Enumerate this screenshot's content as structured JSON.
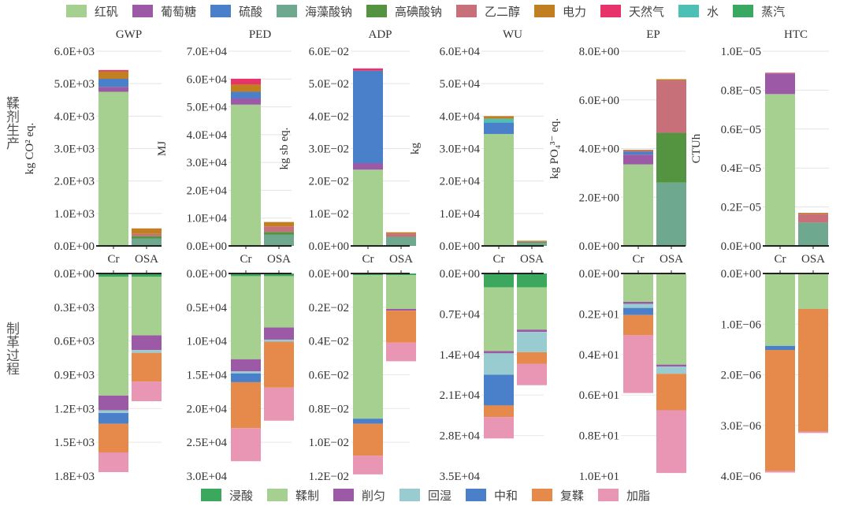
{
  "legend_top": [
    {
      "label": "红矾",
      "color": "#a6d08f"
    },
    {
      "label": "葡萄糖",
      "color": "#9b59a6"
    },
    {
      "label": "硫酸",
      "color": "#4a7fc9"
    },
    {
      "label": "海藻酸钠",
      "color": "#6ea88e"
    },
    {
      "label": "高碘酸钠",
      "color": "#549441"
    },
    {
      "label": "乙二醇",
      "color": "#c8707a"
    },
    {
      "label": "电力",
      "color": "#c17f22"
    },
    {
      "label": "天然气",
      "color": "#e8336a"
    },
    {
      "label": "水",
      "color": "#4cc0b5"
    },
    {
      "label": "蒸汽",
      "color": "#3aa860"
    }
  ],
  "legend_bottom": [
    {
      "label": "浸酸",
      "color": "#3ba85e"
    },
    {
      "label": "鞣制",
      "color": "#a6d08f"
    },
    {
      "label": "削匀",
      "color": "#9b59a6"
    },
    {
      "label": "回湿",
      "color": "#98ccd0"
    },
    {
      "label": "中和",
      "color": "#4a7fc9"
    },
    {
      "label": "复鞣",
      "color": "#e68a4c"
    },
    {
      "label": "加脂",
      "color": "#e896b4"
    }
  ],
  "row_labels": [
    "鞣剂生产",
    "制革过程"
  ],
  "chart_data": {
    "type": "bar",
    "subtype": "stacked",
    "categories": [
      "Cr",
      "OSA"
    ],
    "panels": [
      {
        "title": "GWP",
        "ylabel": "kg CO² eq.",
        "top": {
          "ylim": [
            0,
            6000
          ],
          "ticks": [
            "0.0E+00",
            "1.0E+03",
            "2.0E+03",
            "3.0E+03",
            "4.0E+03",
            "5.0E+03",
            "6.0E+03"
          ],
          "series": [
            {
              "name": "红矾",
              "values": [
                4750,
                0
              ]
            },
            {
              "name": "葡萄糖",
              "values": [
                150,
                0
              ]
            },
            {
              "name": "硫酸",
              "values": [
                250,
                0
              ]
            },
            {
              "name": "海藻酸钠",
              "values": [
                0,
                230
              ]
            },
            {
              "name": "高碘酸钠",
              "values": [
                0,
                70
              ]
            },
            {
              "name": "乙二醇",
              "values": [
                0,
                70
              ]
            },
            {
              "name": "电力",
              "values": [
                230,
                170
              ]
            },
            {
              "name": "天然气",
              "values": [
                40,
                0
              ]
            }
          ]
        },
        "bottom": {
          "ylim": [
            0,
            1800
          ],
          "ticks": [
            "0.0E+00",
            "0.3E+03",
            "0.6E+03",
            "0.9E+03",
            "1.2E+03",
            "1.5E+03",
            "1.8E+03"
          ],
          "series": [
            {
              "name": "浸酸",
              "values": [
                30,
                30
              ]
            },
            {
              "name": "鞣制",
              "values": [
                1055,
                520
              ]
            },
            {
              "name": "削匀",
              "values": [
                130,
                130
              ]
            },
            {
              "name": "回湿",
              "values": [
                25,
                25
              ]
            },
            {
              "name": "中和",
              "values": [
                95,
                0
              ]
            },
            {
              "name": "复鞣",
              "values": [
                255,
                255
              ]
            },
            {
              "name": "加脂",
              "values": [
                175,
                175
              ]
            }
          ]
        }
      },
      {
        "title": "PED",
        "ylabel": "MJ",
        "top": {
          "ylim": [
            0,
            70000
          ],
          "ticks": [
            "0.0E+00",
            "1.0E+04",
            "2.0E+04",
            "3.0E+04",
            "4.0E+04",
            "5.0E+04",
            "6.0E+04",
            "7.0E+04"
          ],
          "series": [
            {
              "name": "红矾",
              "values": [
                50800,
                0
              ]
            },
            {
              "name": "葡萄糖",
              "values": [
                2200,
                0
              ]
            },
            {
              "name": "硫酸",
              "values": [
                2400,
                0
              ]
            },
            {
              "name": "海藻酸钠",
              "values": [
                0,
                4000
              ]
            },
            {
              "name": "高碘酸钠",
              "values": [
                0,
                1000
              ]
            },
            {
              "name": "乙二醇",
              "values": [
                0,
                2000
              ]
            },
            {
              "name": "电力",
              "values": [
                2700,
                1600
              ]
            },
            {
              "name": "天然气",
              "values": [
                2000,
                0
              ]
            }
          ]
        },
        "bottom": {
          "ylim": [
            0,
            30000
          ],
          "ticks": [
            "0.0E+00",
            "0.5E+04",
            "1.0E+04",
            "1.5E+04",
            "2.0E+04",
            "2.5E+04",
            "3.0E+04"
          ],
          "series": [
            {
              "name": "浸酸",
              "values": [
                400,
                400
              ]
            },
            {
              "name": "鞣制",
              "values": [
                12300,
                7600
              ]
            },
            {
              "name": "削匀",
              "values": [
                1800,
                1800
              ]
            },
            {
              "name": "回湿",
              "values": [
                300,
                300
              ]
            },
            {
              "name": "中和",
              "values": [
                1300,
                0
              ]
            },
            {
              "name": "复鞣",
              "values": [
                6800,
                6800
              ]
            },
            {
              "name": "加脂",
              "values": [
                4900,
                4900
              ]
            }
          ]
        }
      },
      {
        "title": "ADP",
        "ylabel": "kg sb eq.",
        "top": {
          "ylim": [
            0,
            0.06
          ],
          "ticks": [
            "0.0E+00",
            "1.0E−02",
            "2.0E−02",
            "3.0E−02",
            "4.0E−02",
            "5.0E−02",
            "6.0E−02"
          ],
          "series": [
            {
              "name": "红矾",
              "values": [
                0.0235,
                0
              ]
            },
            {
              "name": "葡萄糖",
              "values": [
                0.002,
                0
              ]
            },
            {
              "name": "硫酸",
              "values": [
                0.0285,
                0
              ]
            },
            {
              "name": "海藻酸钠",
              "values": [
                0,
                0.0028
              ]
            },
            {
              "name": "乙二醇",
              "values": [
                0,
                0.001
              ]
            },
            {
              "name": "电力",
              "values": [
                0,
                0.0004
              ]
            },
            {
              "name": "天然气",
              "values": [
                0.0007,
                0
              ]
            }
          ]
        },
        "bottom": {
          "ylim": [
            0,
            0.012
          ],
          "ticks": [
            "0.0E+00",
            "0.2E−02",
            "0.4E−02",
            "0.6E−02",
            "0.8E−02",
            "1.0E−02",
            "1.2E−02"
          ],
          "series": [
            {
              "name": "浸酸",
              "values": [
                0.0001,
                0.0001
              ]
            },
            {
              "name": "鞣制",
              "values": [
                0.0085,
                0.002
              ]
            },
            {
              "name": "削匀",
              "values": [
                0,
                0.0001
              ]
            },
            {
              "name": "中和",
              "values": [
                0.0003,
                0
              ]
            },
            {
              "name": "复鞣",
              "values": [
                0.0019,
                0.0019
              ]
            },
            {
              "name": "加脂",
              "values": [
                0.0011,
                0.0011
              ]
            }
          ]
        }
      },
      {
        "title": "WU",
        "ylabel": "kg",
        "top": {
          "ylim": [
            0,
            60000
          ],
          "ticks": [
            "0.0E+00",
            "1.0E+04",
            "2.0E+04",
            "3.0E+04",
            "4.0E+04",
            "5.0E+04",
            "6.0E+04"
          ],
          "series": [
            {
              "name": "红矾",
              "values": [
                34500,
                0
              ]
            },
            {
              "name": "硫酸",
              "values": [
                3500,
                0
              ]
            },
            {
              "name": "海藻酸钠",
              "values": [
                0,
                900
              ]
            },
            {
              "name": "水",
              "values": [
                1200,
                0
              ]
            },
            {
              "name": "高碘酸钠",
              "values": [
                0,
                300
              ]
            },
            {
              "name": "乙二醇",
              "values": [
                0,
                200
              ]
            },
            {
              "name": "电力",
              "values": [
                800,
                200
              ]
            }
          ]
        },
        "bottom": {
          "ylim": [
            0,
            35000
          ],
          "ticks": [
            "0.0E+00",
            "0.7E+04",
            "1.4E+04",
            "2.1E+04",
            "2.8E+04",
            "3.5E+04"
          ],
          "series": [
            {
              "name": "浸酸",
              "values": [
                2400,
                2400
              ]
            },
            {
              "name": "鞣制",
              "values": [
                11000,
                7300
              ]
            },
            {
              "name": "削匀",
              "values": [
                400,
                400
              ]
            },
            {
              "name": "回湿",
              "values": [
                3700,
                3500
              ]
            },
            {
              "name": "中和",
              "values": [
                5300,
                0
              ]
            },
            {
              "name": "复鞣",
              "values": [
                2000,
                2000
              ]
            },
            {
              "name": "加脂",
              "values": [
                3700,
                3700
              ]
            }
          ]
        }
      },
      {
        "title": "EP",
        "ylabel": "kg PO₄³⁻ eq.",
        "top": {
          "ylim": [
            0,
            8
          ],
          "ticks": [
            "0.0E+00",
            "2.0E+00",
            "4.0E+00",
            "6.0E+00",
            "8.0E+00"
          ],
          "series": [
            {
              "name": "红矾",
              "values": [
                3.35,
                0
              ]
            },
            {
              "name": "葡萄糖",
              "values": [
                0.4,
                0
              ]
            },
            {
              "name": "硫酸",
              "values": [
                0.12,
                0
              ]
            },
            {
              "name": "海藻酸钠",
              "values": [
                0,
                2.6
              ]
            },
            {
              "name": "高碘酸钠",
              "values": [
                0,
                2.05
              ]
            },
            {
              "name": "乙二醇",
              "values": [
                0.05,
                2.15
              ]
            },
            {
              "name": "电力",
              "values": [
                0.03,
                0.05
              ]
            }
          ]
        },
        "bottom": {
          "ylim": [
            0,
            10
          ],
          "ticks": [
            "0.0E+00",
            "0.2E+01",
            "0.4E+01",
            "0.6E+01",
            "0.8E+01",
            "1.0E+01"
          ],
          "series": [
            {
              "name": "鞣制",
              "values": [
                1.4,
                4.5
              ]
            },
            {
              "name": "削匀",
              "values": [
                0.1,
                0.1
              ]
            },
            {
              "name": "回湿",
              "values": [
                0.2,
                0.35
              ]
            },
            {
              "name": "中和",
              "values": [
                0.35,
                0
              ]
            },
            {
              "name": "复鞣",
              "values": [
                1.0,
                1.8
              ]
            },
            {
              "name": "加脂",
              "values": [
                2.85,
                3.1
              ]
            }
          ]
        }
      },
      {
        "title": "HTC",
        "ylabel": "CTUh",
        "top": {
          "ylim": [
            0,
            1e-05
          ],
          "ticks": [
            "0.0E+00",
            "0.2E−05",
            "0.4E−05",
            "0.6E−05",
            "0.8E−05",
            "1.0E−05"
          ],
          "series": [
            {
              "name": "红矾",
              "values": [
                7.8e-06,
                0
              ]
            },
            {
              "name": "葡萄糖",
              "values": [
                1.05e-06,
                0
              ]
            },
            {
              "name": "海藻酸钠",
              "values": [
                0,
                1.2e-06
              ]
            },
            {
              "name": "乙二醇",
              "values": [
                5e-08,
                4.5e-07
              ]
            },
            {
              "name": "电力",
              "values": [
                0,
                5e-08
              ]
            }
          ]
        },
        "bottom": {
          "ylim": [
            0,
            4e-06
          ],
          "ticks": [
            "0.0E+00",
            "1.0E−06",
            "2.0E−06",
            "3.0E−06",
            "4.0E−06"
          ],
          "series": [
            {
              "name": "鞣制",
              "values": [
                1.43e-06,
                7e-07
              ]
            },
            {
              "name": "中和",
              "values": [
                8e-08,
                0
              ]
            },
            {
              "name": "复鞣",
              "values": [
                2.39e-06,
                2.42e-06
              ]
            },
            {
              "name": "加脂",
              "values": [
                3e-08,
                3e-08
              ]
            }
          ]
        }
      }
    ]
  }
}
